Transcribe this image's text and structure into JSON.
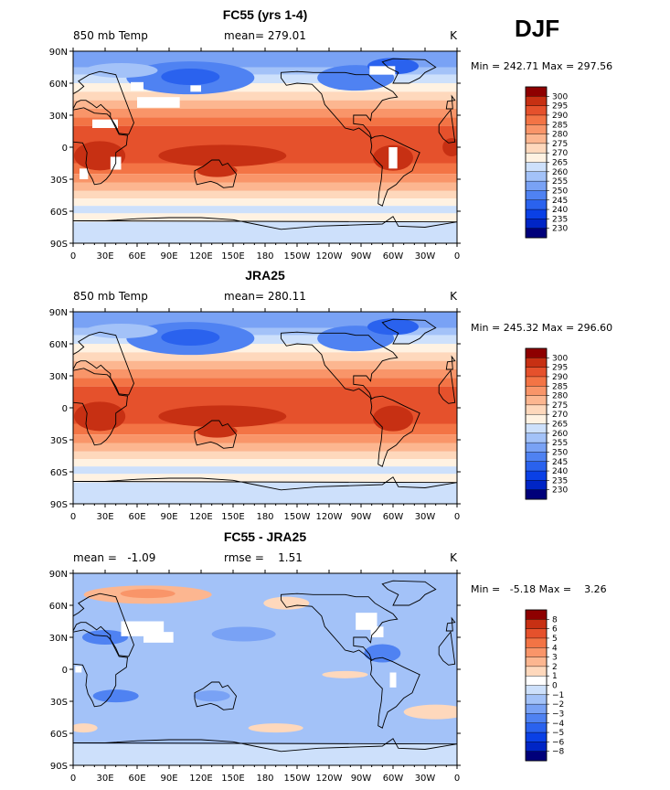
{
  "season_label": "DJF",
  "palettes": {
    "temperature": [
      "#00007a",
      "#0025c6",
      "#0a40e6",
      "#2a62ee",
      "#4f82f2",
      "#79a2f5",
      "#a3c2f8",
      "#cde0fb",
      "#fff2e2",
      "#fed8bc",
      "#fcb690",
      "#f99569",
      "#f37445",
      "#e5512c",
      "#c73013",
      "#8e0000"
    ],
    "difference": [
      "#00007a",
      "#0025c6",
      "#0a40e6",
      "#2a62ee",
      "#4f82f2",
      "#79a2f5",
      "#a3c2f8",
      "#cde0fb",
      "#ffffff",
      "#fed8bc",
      "#fcb690",
      "#f99569",
      "#f37445",
      "#e5512c",
      "#c73013",
      "#8e0000"
    ]
  },
  "axes": {
    "x_ticks": [
      "0",
      "30E",
      "60E",
      "90E",
      "120E",
      "150E",
      "180",
      "150W",
      "120W",
      "90W",
      "60W",
      "30W",
      "0"
    ],
    "y_ticks": [
      "90N",
      "60N",
      "30N",
      "0",
      "30S",
      "60S",
      "90S"
    ],
    "units": "K"
  },
  "chart_data": [
    {
      "type": "heatmap",
      "title": "FC55 (yrs 1-4)",
      "variable": "850 mb Temp",
      "mean_label": "mean= 279.01",
      "rmse_label": "",
      "units": "K",
      "minmax_label": "Min = 242.71 Max = 297.56",
      "min": 242.71,
      "max": 297.56,
      "palette": "temperature",
      "colorbar_labels": [
        "300",
        "295",
        "290",
        "285",
        "280",
        "275",
        "270",
        "265",
        "260",
        "255",
        "250",
        "245",
        "240",
        "235",
        "230"
      ],
      "missing_data_patches": true
    },
    {
      "type": "heatmap",
      "title": "JRA25",
      "variable": "850 mb Temp",
      "mean_label": "mean= 280.11",
      "rmse_label": "",
      "units": "K",
      "minmax_label": "Min = 245.32 Max = 296.60",
      "min": 245.32,
      "max": 296.6,
      "palette": "temperature",
      "colorbar_labels": [
        "300",
        "295",
        "290",
        "285",
        "280",
        "275",
        "270",
        "265",
        "260",
        "255",
        "250",
        "245",
        "240",
        "235",
        "230"
      ],
      "missing_data_patches": false
    },
    {
      "type": "heatmap",
      "title": "FC55 - JRA25",
      "variable": "",
      "mean_label": "mean =   -1.09",
      "rmse_label": "rmse =    1.51",
      "units": "K",
      "minmax_label": "Min =   -5.18 Max =    3.26",
      "min": -5.18,
      "max": 3.26,
      "palette": "difference",
      "colorbar_labels": [
        "8",
        "6",
        "5",
        "4",
        "3",
        "2",
        "1",
        "0",
        "-1",
        "-2",
        "-3",
        "-4",
        "-5",
        "-6",
        "-8"
      ],
      "missing_data_patches": true
    }
  ]
}
